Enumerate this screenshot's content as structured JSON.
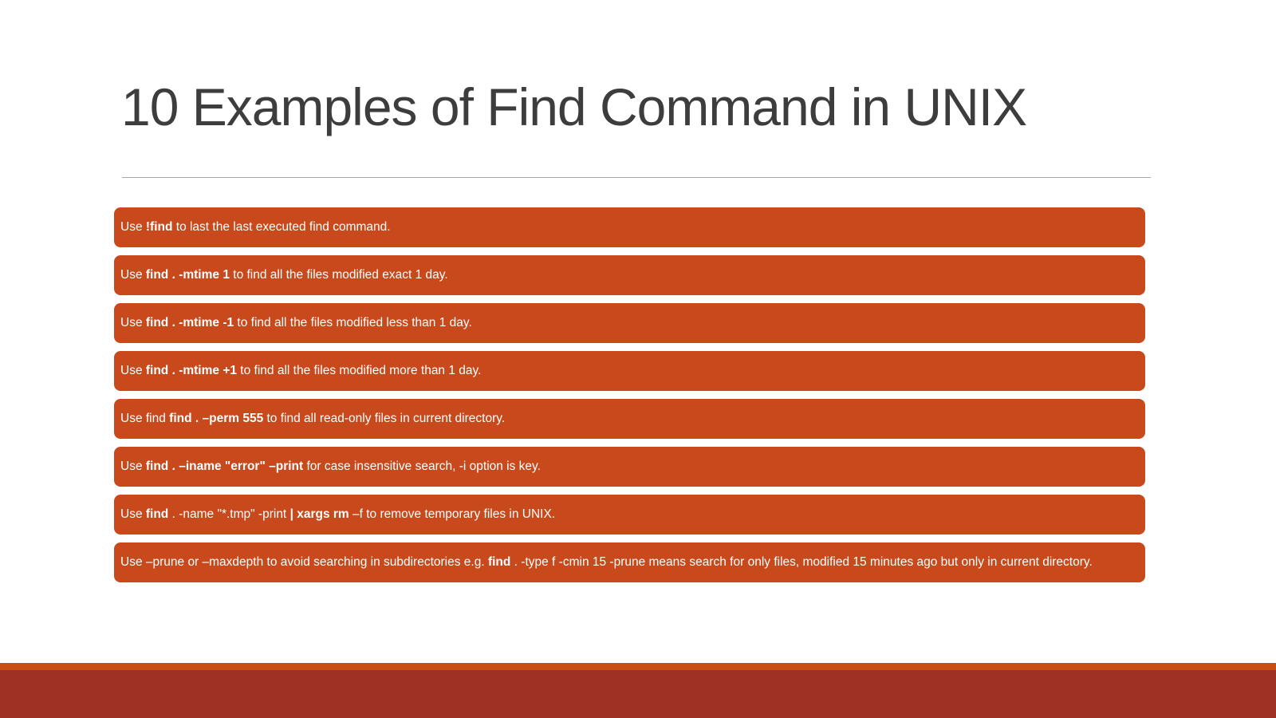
{
  "slide": {
    "title": "10 Examples of Find Command in UNIX",
    "items": [
      {
        "runs": [
          {
            "t": "Use ",
            "b": false
          },
          {
            "t": "!find",
            "b": true
          },
          {
            "t": " to last the last executed find command.",
            "b": false
          }
        ]
      },
      {
        "runs": [
          {
            "t": "Use ",
            "b": false
          },
          {
            "t": "find . -mtime 1",
            "b": true
          },
          {
            "t": " to find all the files modified exact 1 day.",
            "b": false
          }
        ]
      },
      {
        "runs": [
          {
            "t": "Use ",
            "b": false
          },
          {
            "t": "find . -mtime -1",
            "b": true
          },
          {
            "t": " to find all the files modified less than 1 day.",
            "b": false
          }
        ]
      },
      {
        "runs": [
          {
            "t": "Use ",
            "b": false
          },
          {
            "t": "find . -mtime +1",
            "b": true
          },
          {
            "t": " to find all the files modified more than 1 day.",
            "b": false
          }
        ]
      },
      {
        "runs": [
          {
            "t": "Use find ",
            "b": false
          },
          {
            "t": "find . –perm 555",
            "b": true
          },
          {
            "t": " to find all read-only files in current directory.",
            "b": false
          }
        ]
      },
      {
        "runs": [
          {
            "t": "Use ",
            "b": false
          },
          {
            "t": "find . –iname \"error\" –print",
            "b": true
          },
          {
            "t": " for case insensitive search, -i option is key.",
            "b": false
          }
        ]
      },
      {
        "runs": [
          {
            "t": "Use ",
            "b": false
          },
          {
            "t": "find",
            "b": true
          },
          {
            "t": " . -name \"*.tmp\" -print ",
            "b": false
          },
          {
            "t": "| xargs rm",
            "b": true
          },
          {
            "t": " –f to remove temporary files in UNIX.",
            "b": false
          }
        ]
      },
      {
        "runs": [
          {
            "t": "Use –prune or –maxdepth to avoid searching in subdirectories e.g. ",
            "b": false
          },
          {
            "t": "find",
            "b": true
          },
          {
            "t": " . -type f -cmin 15 -prune means search for only files, modified 15 minutes ago but only in current directory.",
            "b": false
          }
        ]
      }
    ],
    "colors": {
      "background": "#ffffff",
      "title_text": "#3d3d3d",
      "divider": "#a8a8a8",
      "bar_fill": "#c7491c",
      "bar_text": "#ffffff",
      "footer_stripe": "#c94e12",
      "footer_band": "#9e3123"
    }
  }
}
